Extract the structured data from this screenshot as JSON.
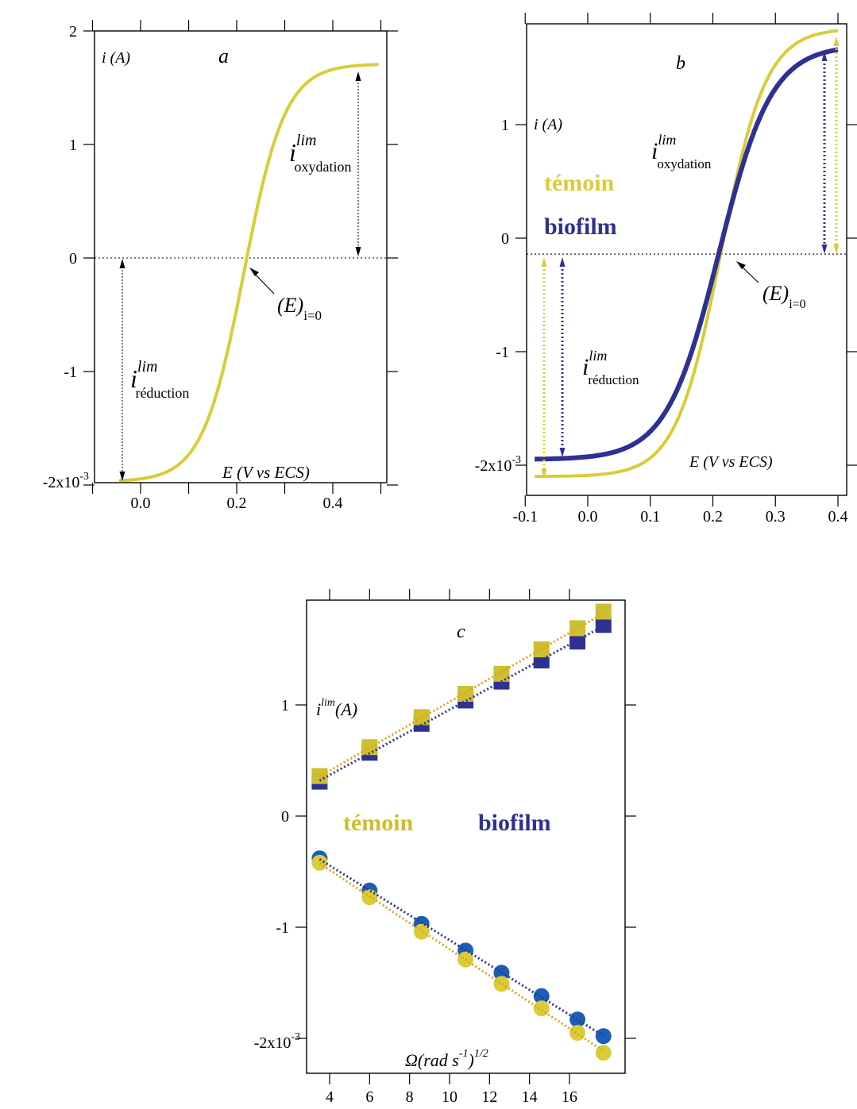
{
  "chart_data": [
    {
      "panel_label": "a",
      "type": "line",
      "ylabel": "i (A)",
      "xlabel": "E (V vs ECS)",
      "xlim": [
        -0.1,
        0.5
      ],
      "ylim": [
        -2,
        2
      ],
      "xticks": [
        "0.0",
        "0.2",
        "0.4"
      ],
      "yticks": [
        "2",
        "1",
        "0",
        "-1"
      ],
      "y_bottom_label": {
        "base": "-2x10",
        "exp": "-3"
      },
      "series": [
        {
          "color": "#d9cc37",
          "curve": {
            "i_red": -1.97,
            "i_ox": 1.71,
            "E0": 0.215,
            "k": 0.043
          }
        }
      ],
      "annotations": {
        "ox_main": "i",
        "ox_sup": "lim",
        "ox_sub": "oxydation",
        "red_main": "i",
        "red_sup": "lim",
        "red_sub": "réduction",
        "e0_main": "(E)",
        "e0_sub": "i=0"
      },
      "zero_line": 0
    },
    {
      "panel_label": "b",
      "type": "line",
      "ylabel": "i (A)",
      "xlabel": "E (V vs ECS)",
      "xlim": [
        -0.11,
        0.41
      ],
      "ylim": [
        -2.05,
        1.85
      ],
      "xticks": [
        "-0.1",
        "0.0",
        "0.1",
        "0.2",
        "0.3",
        "0.4"
      ],
      "yticks": [
        "1",
        "0",
        "-1"
      ],
      "y_bottom_label": {
        "base": "-2x10",
        "exp": "-3"
      },
      "legend": [
        "témoin",
        "biofilm"
      ],
      "series": [
        {
          "name": "témoin",
          "color": "#d9cc37",
          "curve": {
            "i_red": -2.1,
            "i_ox": 1.85,
            "E0": 0.213,
            "k": 0.036
          }
        },
        {
          "name": "biofilm",
          "color": "#2e3192",
          "curve": {
            "i_red": -1.95,
            "i_ox": 1.7,
            "E0": 0.21,
            "k": 0.042
          }
        }
      ],
      "annotations": {
        "ox_main": "i",
        "ox_sup": "lim",
        "ox_sub": "oxydation",
        "red_main": "i",
        "red_sup": "lim",
        "red_sub": "réduction",
        "e0_main": "(E)",
        "e0_sub": "i=0"
      },
      "zero_line": -0.14
    },
    {
      "panel_label": "c",
      "type": "scatter",
      "ylabel": {
        "main": "i",
        "sup": "lim",
        "rest": "(A)"
      },
      "xlabel": {
        "main": "Ω(rad s",
        "sup1": "-1",
        "close": ")",
        "sup2": "1/2"
      },
      "xlim": [
        3,
        18.5
      ],
      "ylim": [
        -2.05,
        2.1
      ],
      "xticks": [
        "4",
        "6",
        "8",
        "10",
        "12",
        "14",
        "16"
      ],
      "yticks": [
        "1",
        "0",
        "-1"
      ],
      "y_bottom_label": {
        "base": "-2x10",
        "exp": "-3"
      },
      "legend": [
        "témoin",
        "biofilm"
      ],
      "x": [
        3.5,
        6.0,
        8.6,
        10.8,
        12.6,
        14.6,
        16.4,
        17.7
      ],
      "series": [
        {
          "name": "témoin",
          "kind": "oxydation",
          "marker": "square",
          "color": "#cdbf2e",
          "values": [
            0.36,
            0.62,
            0.89,
            1.1,
            1.28,
            1.5,
            1.69,
            1.84
          ]
        },
        {
          "name": "biofilm",
          "kind": "oxydation",
          "marker": "square",
          "color": "#2e3192",
          "values": [
            0.31,
            0.57,
            0.83,
            1.04,
            1.21,
            1.4,
            1.57,
            1.72
          ]
        },
        {
          "name": "biofilm",
          "kind": "réduction",
          "marker": "circle",
          "color": "#1a5fb4",
          "values": [
            -0.38,
            -0.67,
            -0.97,
            -1.21,
            -1.41,
            -1.62,
            -1.83,
            -1.98
          ]
        },
        {
          "name": "témoin",
          "kind": "réduction",
          "marker": "circle",
          "color": "#d9cc37",
          "values": [
            -0.42,
            -0.73,
            -1.04,
            -1.29,
            -1.51,
            -1.73,
            -1.95,
            -2.13
          ]
        }
      ],
      "fit_line_colors": {
        "témoin": "#e3a01e",
        "biofilm": "#2e3192"
      }
    }
  ]
}
